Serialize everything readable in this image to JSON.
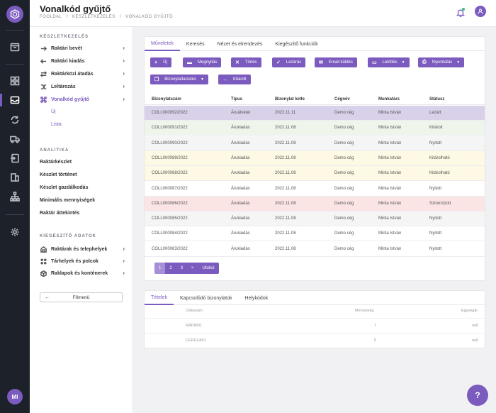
{
  "page": {
    "title": "Vonalkód gyűjtő",
    "breadcrumb": [
      "Főoldal",
      "/",
      "Készletkezelés",
      "/",
      "Vonalkód gyűjtő"
    ]
  },
  "user": {
    "initials": "MI"
  },
  "sidebar": {
    "section1": "Készletkezelés",
    "items": [
      {
        "label": "Raktári bevét"
      },
      {
        "label": "Raktári kiadás"
      },
      {
        "label": "Raktárközi átadás"
      },
      {
        "label": "Leltározás"
      },
      {
        "label": "Vonalkód gyűjtő"
      }
    ],
    "subitems": [
      "Új",
      "Lista"
    ],
    "section2": "Analitika",
    "analytics": [
      "Raktárkészlet",
      "Készlet történet",
      "Készlet gazdálkodás",
      "Minimális mennyiségek",
      "Raktár áttekintés"
    ],
    "section3": "Kiegészítő adatok",
    "extra": [
      {
        "label": "Raktárak és telephelyek"
      },
      {
        "label": "Tárhelyek és polcok"
      },
      {
        "label": "Raklapok és konténerek"
      }
    ],
    "main_button": "Főmenü"
  },
  "tabs": [
    "Műveletek",
    "Keresés",
    "Nézet és elrendezés",
    "Kiegészítő funkciók"
  ],
  "actions": {
    "new": "Új",
    "open": "Megnyitás",
    "delete": "Törlés",
    "close": "Lezárás",
    "email": "Email küldés",
    "download": "Letöltés",
    "print": "Nyomtatás",
    "docmgmt": "Bizonylatkezelés",
    "issued": "Kitárolt"
  },
  "table": {
    "headers": [
      "Bizonylatszám",
      "Típus",
      "Bizonylat kelte",
      "Cégnév",
      "Munkatárs",
      "Státusz"
    ],
    "rows": [
      [
        "COLL000092/2022",
        "Áruátvétel",
        "2022.11.11",
        "Demo cég",
        "Minta István",
        "Lezárt"
      ],
      [
        "COLL000091/2022",
        "Árukiadás",
        "2022.11.08",
        "Demo cég",
        "Minta István",
        "Kitárolt"
      ],
      [
        "COLL000090/2022",
        "Árukiadás",
        "2022.11.08",
        "Demo cég",
        "Minta István",
        "Nyitott"
      ],
      [
        "COLL000089/2022",
        "Árukiadás",
        "2022.11.08",
        "Demo cég",
        "Minta István",
        "Kitárolható"
      ],
      [
        "COLL000088/2022",
        "Árukiadás",
        "2022.11.08",
        "Demo cég",
        "Minta István",
        "Kitárolható"
      ],
      [
        "COLL000087/2022",
        "Árukiadás",
        "2022.11.08",
        "Demo cég",
        "Minta István",
        "Nyitott"
      ],
      [
        "COLL000086/2022",
        "Árukiadás",
        "2022.11.08",
        "Demo cég",
        "Minta István",
        "Sztornózott"
      ],
      [
        "COLL000085/2022",
        "Árukiadás",
        "2022.11.08",
        "Demo cég",
        "Minta István",
        "Nyitott"
      ],
      [
        "COLL000084/2022",
        "Árukiadás",
        "2022.11.08",
        "Demo cég",
        "Minta István",
        "Nyitott"
      ],
      [
        "COLL000083/2022",
        "Árukiadás",
        "2022.11.08",
        "Demo cég",
        "Minta István",
        "Nyitott"
      ]
    ],
    "row_colors": [
      "#d9d0ea",
      "#eef5ea",
      "#f5f5f5",
      "#fdf9e4",
      "#fdf9e4",
      "#ffffff",
      "#fbe4e4",
      "#f5f5f5",
      "#ffffff",
      "#ffffff"
    ]
  },
  "pagination": [
    "1",
    "2",
    "3",
    ">",
    "Utolsó"
  ],
  "detail": {
    "tabs": [
      "Tételek",
      "Kapcsolódó bizonylatok",
      "Helykódok"
    ],
    "headers": [
      "Cikkszám",
      "Mennyiség",
      "Egységár"
    ],
    "rows": [
      [
        "RADIR01",
        "7",
        "null"
      ],
      [
        "CERUZA01",
        "5",
        "null"
      ]
    ]
  },
  "accent": "#7c5bbf"
}
